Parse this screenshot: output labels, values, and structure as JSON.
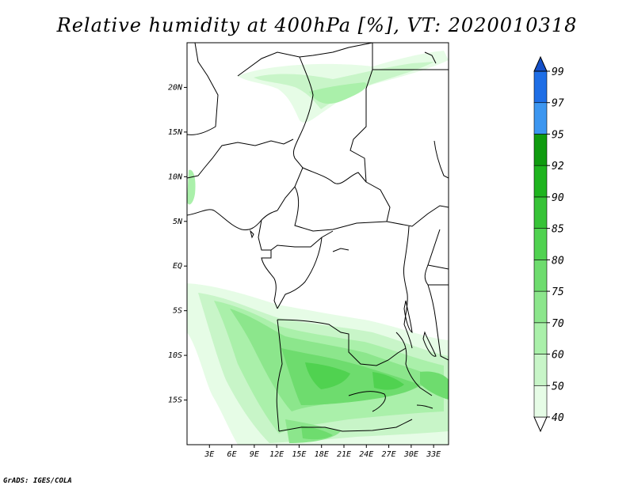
{
  "title": "Relative humidity at 400hPa [%], VT: 2020010318",
  "credit": "GrADS: IGES/COLA",
  "map": {
    "lon_range": [
      0,
      35
    ],
    "lat_range": [
      -20,
      25
    ],
    "lat_ticks": [
      {
        "value": 20,
        "label": "20N"
      },
      {
        "value": 15,
        "label": "15N"
      },
      {
        "value": 10,
        "label": "10N"
      },
      {
        "value": 5,
        "label": "5N"
      },
      {
        "value": 0,
        "label": "EQ"
      },
      {
        "value": -5,
        "label": "5S"
      },
      {
        "value": -10,
        "label": "10S"
      },
      {
        "value": -15,
        "label": "15S"
      }
    ],
    "lon_ticks": [
      {
        "value": 3,
        "label": "3E"
      },
      {
        "value": 6,
        "label": "6E"
      },
      {
        "value": 9,
        "label": "9E"
      },
      {
        "value": 12,
        "label": "12E"
      },
      {
        "value": 15,
        "label": "15E"
      },
      {
        "value": 18,
        "label": "18E"
      },
      {
        "value": 21,
        "label": "21E"
      },
      {
        "value": 24,
        "label": "24E"
      },
      {
        "value": 27,
        "label": "27E"
      },
      {
        "value": 30,
        "label": "30E"
      },
      {
        "value": 33,
        "label": "33E"
      }
    ]
  },
  "colorbar": {
    "levels": [
      "40",
      "50",
      "60",
      "70",
      "75",
      "80",
      "85",
      "90",
      "92",
      "95",
      "97",
      "99"
    ],
    "colors": [
      "#ffffff",
      "#e6fce6",
      "#c8f5c8",
      "#aaf0aa",
      "#8ce68c",
      "#6edc6e",
      "#50d250",
      "#37c337",
      "#1eb41e",
      "#0f9b0f",
      "#3c96f0",
      "#1e6ee6",
      "#1450c8"
    ]
  }
}
